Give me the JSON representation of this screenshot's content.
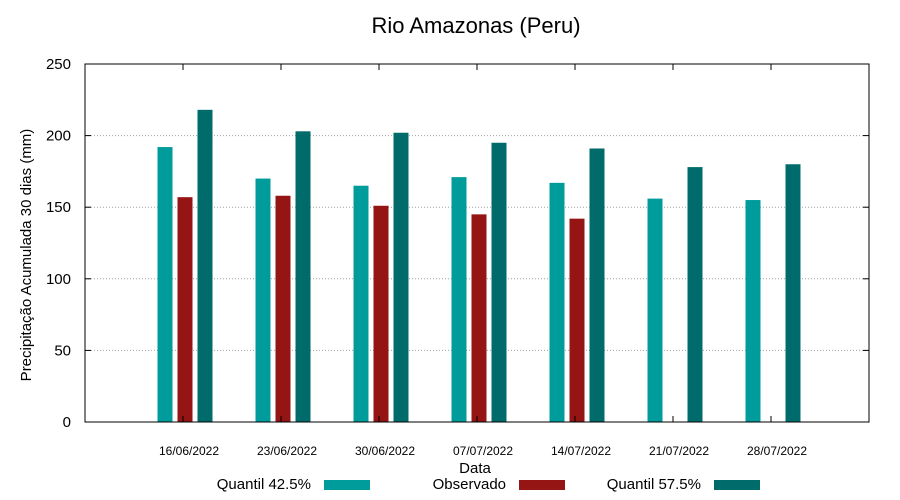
{
  "chart_data": {
    "type": "bar",
    "title": "Rio Amazonas (Peru)",
    "xlabel": "Data",
    "ylabel": "Precipitação Acumulada 30 dias (mm)",
    "ylim": [
      0,
      250
    ],
    "yticks": [
      "0",
      "50",
      "100",
      "150",
      "200",
      "250"
    ],
    "grid": true,
    "legend_position": "bottom",
    "categories": [
      "16/06/2022",
      "23/06/2022",
      "30/06/2022",
      "07/07/2022",
      "14/07/2022",
      "21/07/2022",
      "28/07/2022"
    ],
    "series": [
      {
        "name": "Quantil 42.5%",
        "color": "#009b9b",
        "values": [
          192,
          170,
          165,
          171,
          167,
          156,
          155
        ]
      },
      {
        "name": "Observado",
        "color": "#951414",
        "values": [
          157,
          158,
          151,
          145,
          142,
          null,
          null
        ]
      },
      {
        "name": "Quantil 57.5%",
        "color": "#006b6b",
        "values": [
          218,
          203,
          202,
          195,
          191,
          178,
          180
        ]
      }
    ]
  }
}
